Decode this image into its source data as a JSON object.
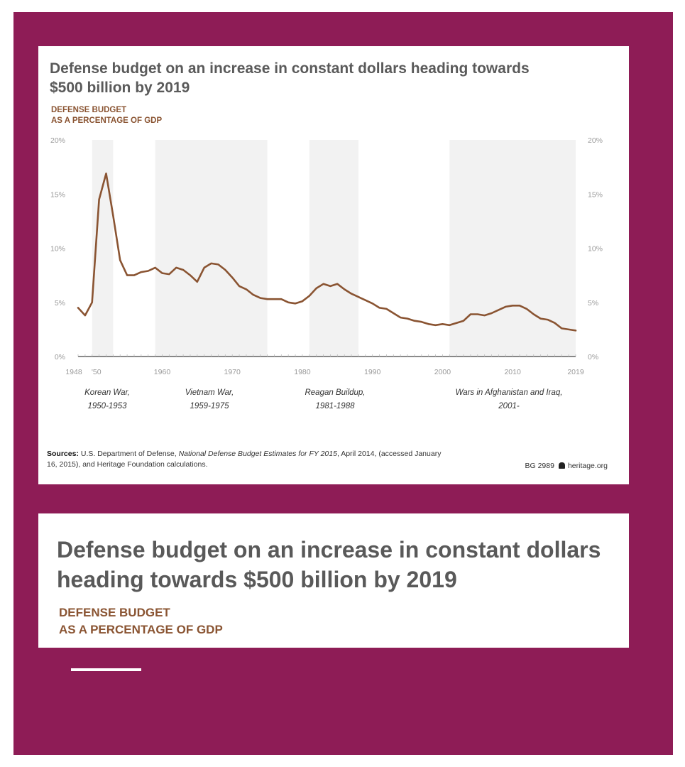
{
  "chart_data": {
    "type": "line",
    "title": "Defense budget on an increase in constant dollars heading towards $500 billion by 2019",
    "subtitle": [
      "DEFENSE BUDGET",
      "AS A PERCENTAGE OF GDP"
    ],
    "x_ticks": [
      "1948",
      "'50",
      "1960",
      "1970",
      "1980",
      "1990",
      "2000",
      "2010",
      "2019"
    ],
    "y_ticks": [
      "0%",
      "5%",
      "10%",
      "15%",
      "20%"
    ],
    "ylim": [
      0,
      20
    ],
    "xlim": [
      1948,
      2019
    ],
    "grid": false,
    "shaded_periods": [
      {
        "start": 1950,
        "end": 1953,
        "label_line1": "Korean War,",
        "label_line2": "1950-1953"
      },
      {
        "start": 1959,
        "end": 1975,
        "label_line1": "Vietnam War,",
        "label_line2": "1959-1975"
      },
      {
        "start": 1981,
        "end": 1988,
        "label_line1": "Reagan Buildup,",
        "label_line2": "1981-1988"
      },
      {
        "start": 2001,
        "end": 2019,
        "label_line1": "Wars in Afghanistan and Iraq,",
        "label_line2": "2001-"
      }
    ],
    "series": [
      {
        "color": "#8a5432",
        "x": [
          1948,
          1949,
          1950,
          1951,
          1952,
          1953,
          1954,
          1955,
          1956,
          1957,
          1958,
          1959,
          1960,
          1961,
          1962,
          1963,
          1964,
          1965,
          1966,
          1967,
          1968,
          1969,
          1970,
          1971,
          1972,
          1973,
          1974,
          1975,
          1976,
          1977,
          1978,
          1979,
          1980,
          1981,
          1982,
          1983,
          1984,
          1985,
          1986,
          1987,
          1988,
          1989,
          1990,
          1991,
          1992,
          1993,
          1994,
          1995,
          1996,
          1997,
          1998,
          1999,
          2000,
          2001,
          2002,
          2003,
          2004,
          2005,
          2006,
          2007,
          2008,
          2009,
          2010,
          2011,
          2012,
          2013,
          2014,
          2015,
          2016,
          2017,
          2018,
          2019
        ],
        "values": [
          4.5,
          3.8,
          5.0,
          14.5,
          16.9,
          13.0,
          8.9,
          7.5,
          7.5,
          7.8,
          7.9,
          8.2,
          7.7,
          7.6,
          8.2,
          8.0,
          7.5,
          6.9,
          8.2,
          8.6,
          8.5,
          8.0,
          7.3,
          6.5,
          6.2,
          5.7,
          5.4,
          5.3,
          5.3,
          5.3,
          5.0,
          4.9,
          5.1,
          5.6,
          6.3,
          6.7,
          6.5,
          6.7,
          6.2,
          5.8,
          5.5,
          5.2,
          4.9,
          4.5,
          4.4,
          4.0,
          3.6,
          3.5,
          3.3,
          3.2,
          3.0,
          2.9,
          3.0,
          2.9,
          3.1,
          3.3,
          3.9,
          3.9,
          3.8,
          4.0,
          4.3,
          4.6,
          4.7,
          4.7,
          4.4,
          3.9,
          3.5,
          3.4,
          3.1,
          2.6,
          2.5,
          2.4
        ]
      }
    ],
    "sources_label": "Sources:",
    "sources_text_1": " U.S. Department of Defense, ",
    "sources_text_italic": "National Defense Budget Estimates for FY 2015",
    "sources_text_2": ", April 2014, (accessed January 16, 2015), and Heritage Foundation calculations.",
    "credit_code": "BG 2989",
    "credit_site": "heritage.org"
  },
  "second_card": {
    "title": "Defense budget on an increase in constant dollars heading towards $500 billion by 2019",
    "subtitle": [
      "DEFENSE BUDGET",
      "AS A PERCENTAGE OF GDP"
    ]
  },
  "colors": {
    "frame": "#8e1c56",
    "line": "#8a5432",
    "title": "#5a5a5a",
    "subtitle": "#8a5432"
  }
}
